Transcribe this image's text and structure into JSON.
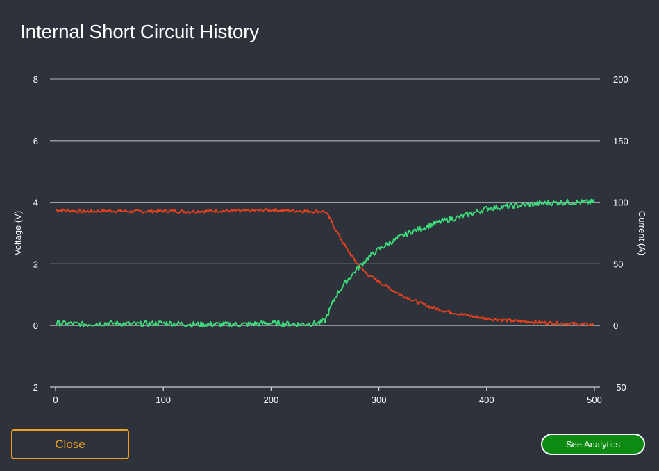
{
  "dialog": {
    "title": "Internal Short Circuit History",
    "close_label": "Close",
    "analytics_label": "See Analytics"
  },
  "colors": {
    "background": "#2d323b",
    "voltage": "#e8401c",
    "current": "#3ddc7a",
    "grid": "#9aa0a6",
    "close_accent": "#f0a020",
    "analytics_bg": "#0d8a12"
  },
  "chart_data": {
    "type": "line",
    "xlim": [
      0,
      500
    ],
    "x_ticks": [
      0,
      100,
      200,
      300,
      400,
      500
    ],
    "y_left": {
      "label": "Voltage (V)",
      "lim": [
        -2,
        8
      ],
      "ticks": [
        -2,
        0,
        2,
        4,
        6,
        8
      ]
    },
    "y_right": {
      "label": "Current (A)",
      "lim": [
        -50,
        200
      ],
      "ticks": [
        -50,
        0,
        50,
        100,
        150,
        200
      ]
    },
    "grid": "horizontal",
    "series": [
      {
        "axis": "left",
        "color": "#e8401c",
        "x": [
          0,
          25,
          50,
          75,
          100,
          125,
          150,
          175,
          200,
          225,
          250,
          255,
          260,
          265,
          270,
          275,
          280,
          285,
          290,
          300,
          310,
          320,
          330,
          340,
          350,
          360,
          375,
          390,
          400,
          425,
          450,
          475,
          500
        ],
        "y": [
          3.75,
          3.7,
          3.72,
          3.7,
          3.72,
          3.7,
          3.72,
          3.72,
          3.75,
          3.72,
          3.7,
          3.45,
          3.1,
          2.8,
          2.5,
          2.25,
          2.0,
          1.8,
          1.65,
          1.42,
          1.2,
          1.0,
          0.85,
          0.7,
          0.58,
          0.48,
          0.38,
          0.28,
          0.22,
          0.15,
          0.1,
          0.06,
          0.03
        ]
      },
      {
        "axis": "right",
        "color": "#3ddc7a",
        "x": [
          0,
          25,
          50,
          75,
          100,
          125,
          150,
          175,
          200,
          225,
          245,
          250,
          255,
          260,
          270,
          280,
          290,
          300,
          310,
          320,
          330,
          340,
          350,
          360,
          375,
          390,
          400,
          425,
          450,
          475,
          500
        ],
        "y": [
          2,
          1,
          2,
          1,
          2,
          1,
          1,
          1,
          2,
          1,
          2,
          4,
          14,
          24,
          36,
          46,
          55,
          62,
          67,
          72,
          76,
          79,
          82,
          85,
          88,
          92,
          95,
          97,
          99,
          100,
          100
        ]
      }
    ]
  }
}
